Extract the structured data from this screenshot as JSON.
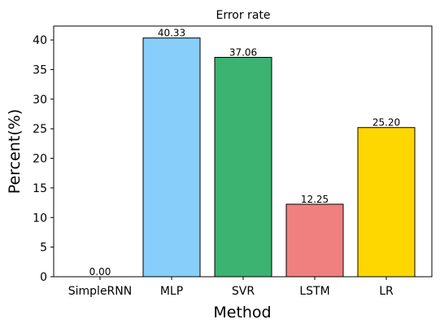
{
  "chart_data": {
    "type": "bar",
    "title": "Error rate",
    "xlabel": "Method",
    "ylabel": "Percent(%)",
    "categories": [
      "SimpleRNN",
      "MLP",
      "SVR",
      "LSTM",
      "LR"
    ],
    "values": [
      0.0,
      40.33,
      37.06,
      12.25,
      25.2
    ],
    "value_labels": [
      "0.00",
      "40.33",
      "37.06",
      "12.25",
      "25.20"
    ],
    "colors": [
      "#87CEFA",
      "#87CEFA",
      "#3CB371",
      "#F08080",
      "#FFD700"
    ],
    "yticks": [
      0,
      5,
      10,
      15,
      20,
      25,
      30,
      35,
      40
    ],
    "ylim": [
      0,
      42.35
    ],
    "grid": false,
    "legend": "none"
  }
}
